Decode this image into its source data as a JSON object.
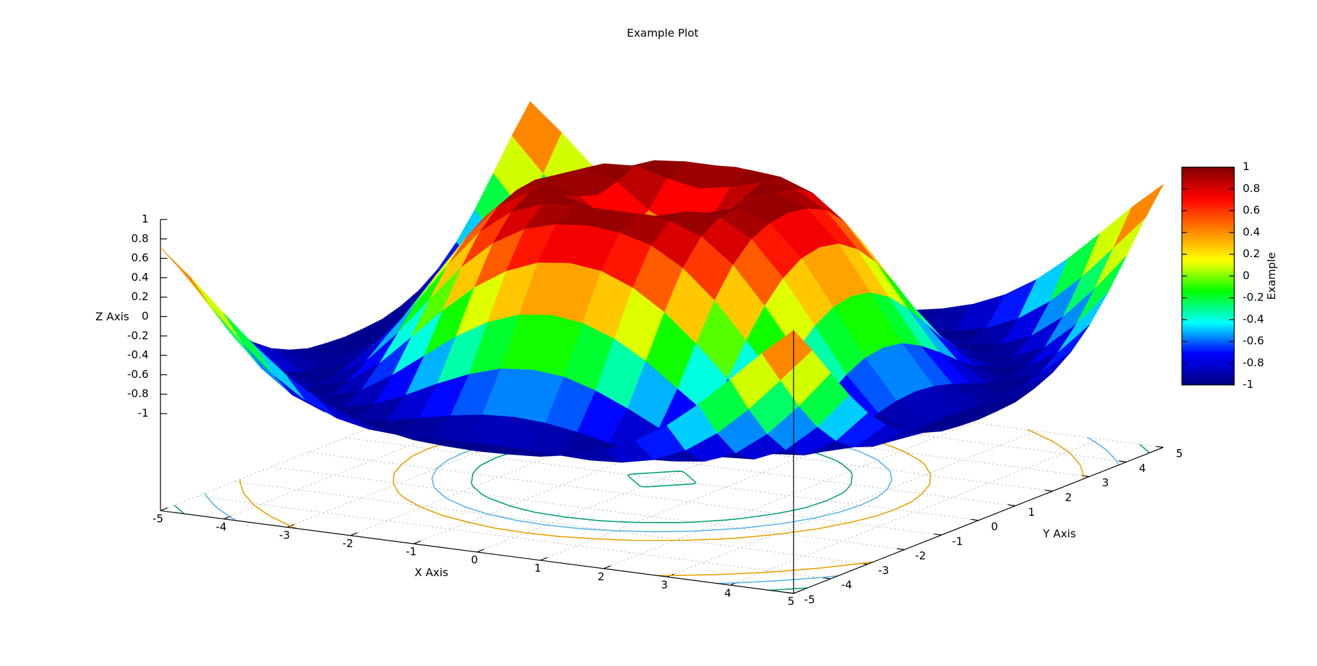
{
  "chart_data": {
    "type": "surface",
    "title": "Example Plot",
    "x_label": "X Axis",
    "y_label": "Y Axis",
    "z_label": "Z Axis",
    "colorbar_label": "Example",
    "x": [
      -5,
      -4.5,
      -4,
      -3.5,
      -3,
      -2.5,
      -2,
      -1.5,
      -1,
      -0.5,
      0,
      0.5,
      1,
      1.5,
      2,
      2.5,
      3,
      3.5,
      4,
      4.5,
      5
    ],
    "y": [
      -5,
      -4.5,
      -4,
      -3.5,
      -3,
      -2.5,
      -2,
      -1.5,
      -1,
      -0.5,
      0,
      0.5,
      1,
      1.5,
      2,
      2.5,
      3,
      3.5,
      4,
      4.5,
      5
    ],
    "z": [
      [
        0.71,
        0.43,
        0.12,
        -0.18,
        -0.44,
        -0.64,
        -0.78,
        -0.87,
        -0.93,
        -0.95,
        -0.96,
        -0.95,
        -0.93,
        -0.87,
        -0.78,
        -0.64,
        -0.44,
        -0.18,
        0.12,
        0.43,
        0.71
      ],
      [
        0.43,
        0.08,
        -0.26,
        -0.55,
        -0.77,
        -0.91,
        -0.98,
        -1,
        -0.99,
        -0.98,
        -0.98,
        -0.98,
        -0.99,
        -1,
        -0.98,
        -0.91,
        -0.77,
        -0.55,
        -0.26,
        0.08,
        0.43
      ],
      [
        0.12,
        -0.26,
        -0.59,
        -0.83,
        -0.96,
        -1,
        -0.97,
        -0.9,
        -0.83,
        -0.78,
        -0.76,
        -0.78,
        -0.83,
        -0.9,
        -0.97,
        -1,
        -0.96,
        -0.83,
        -0.59,
        -0.26,
        0.12
      ],
      [
        -0.18,
        -0.55,
        -0.83,
        -0.97,
        -0.99,
        -0.92,
        -0.78,
        -0.62,
        -0.48,
        -0.38,
        -0.35,
        -0.38,
        -0.48,
        -0.62,
        -0.78,
        -0.92,
        -0.99,
        -0.97,
        -0.83,
        -0.55,
        -0.18
      ],
      [
        -0.44,
        -0.77,
        -0.96,
        -0.99,
        -0.89,
        -0.69,
        -0.45,
        -0.21,
        -0.02,
        0.1,
        0.14,
        0.1,
        -0.02,
        -0.21,
        -0.45,
        -0.69,
        -0.89,
        -0.99,
        -0.96,
        -0.77,
        -0.44
      ],
      [
        -0.64,
        -0.91,
        -1,
        -0.92,
        -0.69,
        -0.38,
        -0.06,
        0.22,
        0.43,
        0.56,
        0.6,
        0.56,
        0.43,
        0.22,
        -0.06,
        -0.38,
        -0.69,
        -0.92,
        -1,
        -0.91,
        -0.64
      ],
      [
        -0.78,
        -0.98,
        -0.97,
        -0.78,
        -0.45,
        -0.06,
        0.31,
        0.6,
        0.79,
        0.88,
        0.91,
        0.88,
        0.79,
        0.6,
        0.31,
        -0.06,
        -0.45,
        -0.78,
        -0.97,
        -0.98,
        -0.78
      ],
      [
        -0.87,
        -1,
        -0.9,
        -0.62,
        -0.21,
        0.22,
        0.6,
        0.85,
        0.97,
        1,
        1,
        1,
        0.97,
        0.85,
        0.6,
        0.22,
        -0.21,
        -0.62,
        -0.9,
        -1,
        -0.87
      ],
      [
        -0.93,
        -0.99,
        -0.83,
        -0.48,
        -0.02,
        0.43,
        0.79,
        0.97,
        0.99,
        0.9,
        0.84,
        0.9,
        0.99,
        0.97,
        0.79,
        0.43,
        -0.02,
        -0.48,
        -0.83,
        -0.99,
        -0.93
      ],
      [
        -0.95,
        -0.98,
        -0.78,
        -0.38,
        0.1,
        0.56,
        0.88,
        1,
        0.9,
        0.65,
        0.48,
        0.65,
        0.9,
        1,
        0.88,
        0.56,
        0.1,
        -0.38,
        -0.78,
        -0.98,
        -0.95
      ],
      [
        -0.96,
        -0.98,
        -0.76,
        -0.35,
        0.14,
        0.6,
        0.91,
        1,
        0.84,
        0.48,
        0,
        0.48,
        0.84,
        1,
        0.91,
        0.6,
        0.14,
        -0.35,
        -0.76,
        -0.98,
        -0.96
      ],
      [
        -0.95,
        -0.98,
        -0.78,
        -0.38,
        0.1,
        0.56,
        0.88,
        1,
        0.9,
        0.65,
        0.48,
        0.65,
        0.9,
        1,
        0.88,
        0.56,
        0.1,
        -0.38,
        -0.78,
        -0.98,
        -0.95
      ],
      [
        -0.93,
        -0.99,
        -0.83,
        -0.48,
        -0.02,
        0.43,
        0.79,
        0.97,
        0.99,
        0.9,
        0.84,
        0.9,
        0.99,
        0.97,
        0.79,
        0.43,
        -0.02,
        -0.48,
        -0.83,
        -0.99,
        -0.93
      ],
      [
        -0.87,
        -1,
        -0.9,
        -0.62,
        -0.21,
        0.22,
        0.6,
        0.85,
        0.97,
        1,
        1,
        1,
        0.97,
        0.85,
        0.6,
        0.22,
        -0.21,
        -0.62,
        -0.9,
        -1,
        -0.87
      ],
      [
        -0.78,
        -0.98,
        -0.97,
        -0.78,
        -0.45,
        -0.06,
        0.31,
        0.6,
        0.79,
        0.88,
        0.91,
        0.88,
        0.79,
        0.6,
        0.31,
        -0.06,
        -0.45,
        -0.78,
        -0.97,
        -0.98,
        -0.78
      ],
      [
        -0.64,
        -0.91,
        -1,
        -0.92,
        -0.69,
        -0.38,
        -0.06,
        0.22,
        0.43,
        0.56,
        0.6,
        0.56,
        0.43,
        0.22,
        -0.06,
        -0.38,
        -0.69,
        -0.92,
        -1,
        -0.91,
        -0.64
      ],
      [
        -0.44,
        -0.77,
        -0.96,
        -0.99,
        -0.89,
        -0.69,
        -0.45,
        -0.21,
        -0.02,
        0.1,
        0.14,
        0.1,
        -0.02,
        -0.21,
        -0.45,
        -0.69,
        -0.89,
        -0.99,
        -0.96,
        -0.77,
        -0.44
      ],
      [
        -0.18,
        -0.55,
        -0.83,
        -0.97,
        -0.99,
        -0.92,
        -0.78,
        -0.62,
        -0.48,
        -0.38,
        -0.35,
        -0.38,
        -0.48,
        -0.62,
        -0.78,
        -0.92,
        -0.99,
        -0.97,
        -0.83,
        -0.55,
        -0.18
      ],
      [
        0.12,
        -0.26,
        -0.59,
        -0.83,
        -0.96,
        -1,
        -0.97,
        -0.9,
        -0.83,
        -0.78,
        -0.76,
        -0.78,
        -0.83,
        -0.9,
        -0.97,
        -1,
        -0.96,
        -0.83,
        -0.59,
        -0.26,
        0.12
      ],
      [
        0.43,
        0.08,
        -0.26,
        -0.55,
        -0.77,
        -0.91,
        -0.98,
        -1,
        -0.99,
        -0.98,
        -0.98,
        -0.98,
        -0.99,
        -1,
        -0.98,
        -0.91,
        -0.77,
        -0.55,
        -0.26,
        0.08,
        0.43
      ],
      [
        0.71,
        0.43,
        0.12,
        -0.18,
        -0.44,
        -0.64,
        -0.78,
        -0.87,
        -0.93,
        -0.95,
        -0.96,
        -0.95,
        -0.93,
        -0.87,
        -0.78,
        -0.64,
        -0.44,
        -0.18,
        0.12,
        0.43,
        0.71
      ]
    ],
    "xlim": [
      -5,
      5
    ],
    "ylim": [
      -5,
      5
    ],
    "zlim": [
      -1,
      1
    ],
    "xticks": [
      -5,
      -4,
      -3,
      -2,
      -1,
      0,
      1,
      2,
      3,
      4,
      5
    ],
    "yticks": [
      -5,
      -4,
      -3,
      -2,
      -1,
      0,
      1,
      2,
      3,
      4,
      5
    ],
    "zticks": [
      -1,
      -0.8,
      -0.6,
      -0.4,
      -0.2,
      0,
      0.2,
      0.4,
      0.6,
      0.8,
      1
    ],
    "cblim": [
      -1,
      1
    ],
    "cbticks": [
      -1,
      -0.8,
      -0.6,
      -0.4,
      -0.2,
      0,
      0.2,
      0.4,
      0.6,
      0.8,
      1
    ],
    "palette": [
      "#000080",
      "#0000ff",
      "#00ffff",
      "#00ff00",
      "#ffff00",
      "#ff8000",
      "#ff0000",
      "#800000"
    ],
    "grid": true,
    "contours": {
      "levels": [
        0.5,
        0,
        -0.5
      ],
      "colors": [
        "#009e73",
        "#56b4e9",
        "#e69f00"
      ]
    }
  }
}
